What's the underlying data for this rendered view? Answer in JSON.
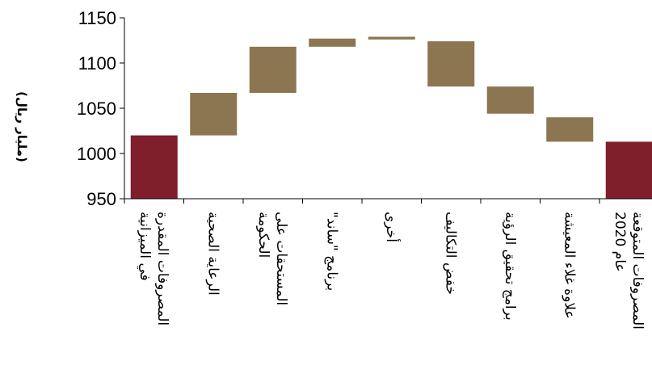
{
  "chart_data": {
    "type": "bar",
    "subtype": "waterfall",
    "ylabel": "(مليار ريال)",
    "ylim": [
      950,
      1150
    ],
    "yticks": [
      "950",
      "1000",
      "1050",
      "1100",
      "1150"
    ],
    "grid": false,
    "legend": "none",
    "colors": {
      "total": "#7f1f2b",
      "change": "#8c7651"
    },
    "categories": [
      [
        "المصروفات المقدرة",
        "في الميزانية"
      ],
      [
        "الرعاية الصحية"
      ],
      [
        "المستحقات على",
        "الحكومة"
      ],
      [
        "برنامج \"ساند\""
      ],
      [
        "أخرى"
      ],
      [
        "خفض التكاليف"
      ],
      [
        "برامج تحقيق الرؤية"
      ],
      [
        "علاوة غلاء المعيشة"
      ],
      [
        "المصروفات المتوقعة",
        "عام 2020"
      ]
    ],
    "bars": [
      {
        "kind": "total",
        "from": 950,
        "to": 1020
      },
      {
        "kind": "change",
        "from": 1020,
        "to": 1067
      },
      {
        "kind": "change",
        "from": 1067,
        "to": 1118
      },
      {
        "kind": "change",
        "from": 1118,
        "to": 1127
      },
      {
        "kind": "change",
        "from": 1126,
        "to": 1129
      },
      {
        "kind": "change",
        "from": 1124,
        "to": 1074
      },
      {
        "kind": "change",
        "from": 1074,
        "to": 1044
      },
      {
        "kind": "change",
        "from": 1040,
        "to": 1013
      },
      {
        "kind": "total",
        "from": 950,
        "to": 1013
      }
    ]
  }
}
